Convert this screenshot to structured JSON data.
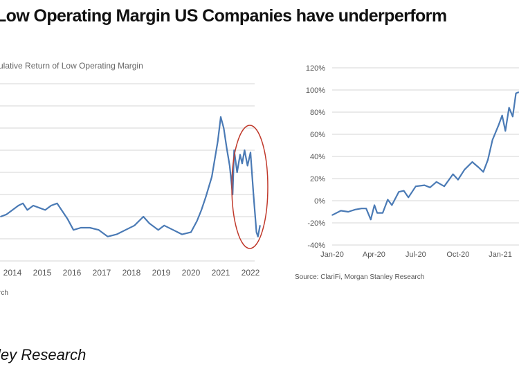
{
  "title": "Low Operating Margin US Companies have underperform",
  "footer": "ley Research",
  "colors": {
    "line": "#4a7ab5",
    "highlight_ellipse": "#c0392b",
    "grid": "#e3e3e3"
  },
  "chart_data": [
    {
      "type": "line",
      "title": "ulative Return of Low Operating Margin",
      "xlabel": "",
      "ylabel": "",
      "x_ticks": [
        "2014",
        "2015",
        "2016",
        "2017",
        "2018",
        "2019",
        "2020",
        "2021",
        "2022"
      ],
      "grid": true,
      "annotation": "red ellipse highlighting the 2021-2022 decline",
      "source": "rch",
      "series": [
        {
          "x": [
            2013.6,
            2013.8,
            2014.0,
            2014.2,
            2014.35,
            2014.5,
            2014.7,
            2014.9,
            2015.1,
            2015.3,
            2015.5,
            2015.7,
            2015.85,
            2016.05,
            2016.3,
            2016.6,
            2016.9,
            2017.2,
            2017.5,
            2017.8,
            2018.1,
            2018.4,
            2018.6,
            2018.9,
            2019.1,
            2019.4,
            2019.7,
            2020.0,
            2020.2,
            2020.35,
            2020.5,
            2020.7,
            2020.9,
            2021.0,
            2021.1,
            2021.2,
            2021.3,
            2021.4,
            2021.45,
            2021.55,
            2021.65,
            2021.72,
            2021.8,
            2021.9,
            2022.0,
            2022.1,
            2022.2,
            2022.25,
            2022.32
          ],
          "y": [
            2.0,
            2.1,
            2.3,
            2.5,
            2.6,
            2.3,
            2.5,
            2.4,
            2.3,
            2.5,
            2.6,
            2.2,
            1.9,
            1.4,
            1.5,
            1.5,
            1.4,
            1.1,
            1.2,
            1.4,
            1.6,
            2.0,
            1.7,
            1.4,
            1.6,
            1.4,
            1.2,
            1.3,
            1.8,
            2.3,
            2.9,
            3.8,
            5.4,
            6.5,
            6.0,
            5.1,
            4.3,
            3.0,
            5.0,
            4.0,
            4.8,
            4.4,
            5.0,
            4.3,
            4.9,
            3.0,
            1.3,
            1.1,
            1.6
          ]
        }
      ]
    },
    {
      "type": "line",
      "title": "",
      "xlabel": "",
      "ylabel": "",
      "ylim": [
        -40,
        120
      ],
      "y_ticks": [
        "120%",
        "100%",
        "80%",
        "60%",
        "40%",
        "20%",
        "0%",
        "-20%",
        "-40%"
      ],
      "x_ticks": [
        "Jan-20",
        "Apr-20",
        "Jul-20",
        "Oct-20",
        "Jan-21"
      ],
      "grid": true,
      "source": "Source: ClariFi, Morgan Stanley Research",
      "series": [
        {
          "x": [
            "2020-01-01",
            "2020-01-20",
            "2020-02-05",
            "2020-02-20",
            "2020-03-05",
            "2020-03-15",
            "2020-03-25",
            "2020-04-02",
            "2020-04-08",
            "2020-04-20",
            "2020-05-01",
            "2020-05-10",
            "2020-05-25",
            "2020-06-05",
            "2020-06-15",
            "2020-07-01",
            "2020-07-20",
            "2020-08-01",
            "2020-08-15",
            "2020-09-01",
            "2020-09-20",
            "2020-10-01",
            "2020-10-15",
            "2020-11-01",
            "2020-11-15",
            "2020-11-25",
            "2020-12-05",
            "2020-12-15",
            "2020-12-28",
            "2021-01-05",
            "2021-01-12",
            "2021-01-20",
            "2021-01-28",
            "2021-02-04",
            "2021-02-10"
          ],
          "y": [
            -13,
            -9,
            -10,
            -8,
            -7,
            -7,
            -17,
            -4,
            -11,
            -11,
            1,
            -4,
            8,
            9,
            3,
            13,
            14,
            12,
            17,
            13,
            24,
            19,
            28,
            35,
            30,
            26,
            37,
            55,
            68,
            77,
            63,
            84,
            76,
            97,
            98
          ]
        }
      ]
    }
  ]
}
